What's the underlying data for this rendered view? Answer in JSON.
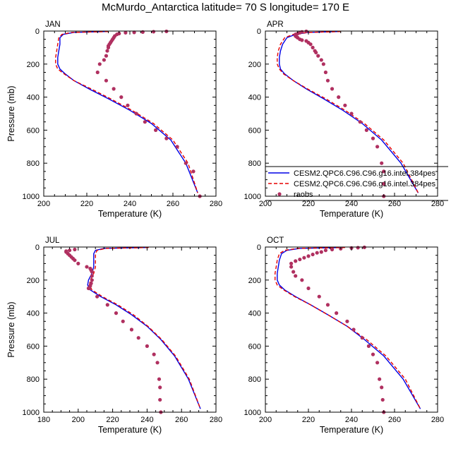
{
  "title": "McMurdo_Antarctica  latitude= 70 S longitude= 170 E",
  "colors": {
    "model_a": "#0000e6",
    "model_b": "#e60000",
    "raobs": "#b03060"
  },
  "legend": {
    "entries": [
      {
        "label": "CESM2.QPC6.C96.C96.g16.intel.384pes",
        "style": "solid",
        "color": "#0000e6"
      },
      {
        "label": "CESM2.QPC6.C96.C96.g16.intel.384pes",
        "style": "dashed",
        "color": "#e60000"
      },
      {
        "label": "raobs",
        "style": "marker",
        "color": "#b03060"
      }
    ]
  },
  "chart_data": [
    {
      "type": "line",
      "panel": "JAN",
      "xlabel": "Temperature (K)",
      "ylabel": "Pressure (mb)",
      "xlim": [
        200,
        280
      ],
      "ylim": [
        1000,
        0
      ],
      "xticks": [
        200,
        220,
        240,
        260,
        280
      ],
      "yticks": [
        0,
        200,
        400,
        600,
        800,
        1000
      ],
      "series": [
        {
          "name": "CESM2.QPC6.C96.C96.g16.intel.384pes",
          "style": "solid",
          "x": [
            229,
            214,
            209,
            207.5,
            207.5,
            207,
            206.5,
            206.5,
            207.5,
            210,
            214,
            221,
            230,
            240,
            250,
            259,
            266,
            271.5
          ],
          "y": [
            3,
            8,
            20,
            40,
            80,
            120,
            160,
            200,
            230,
            260,
            300,
            350,
            410,
            480,
            560,
            660,
            800,
            980
          ]
        },
        {
          "name": "CESM2.QPC6.C96.C96.g16.intel.384pes",
          "style": "dashed",
          "x": [
            230,
            213,
            208.5,
            207,
            206.5,
            206,
            205.5,
            205.5,
            206.5,
            209.5,
            214,
            222,
            231,
            241,
            251,
            260,
            267,
            271.5
          ],
          "y": [
            3,
            8,
            20,
            40,
            80,
            120,
            160,
            200,
            230,
            260,
            300,
            350,
            410,
            480,
            560,
            660,
            800,
            980
          ]
        },
        {
          "name": "raobs",
          "style": "marker",
          "x": [
            257,
            251,
            246,
            242,
            238,
            235,
            234,
            233,
            232.5,
            232,
            231.5,
            231,
            230.5,
            230,
            230,
            229.5,
            229,
            228,
            226,
            225,
            229,
            232.5,
            236,
            239,
            243,
            247,
            252,
            257,
            262,
            266,
            269.5,
            272.5
          ],
          "y": [
            2,
            4,
            6,
            8,
            10,
            15,
            20,
            30,
            40,
            50,
            60,
            70,
            80,
            90,
            100,
            120,
            150,
            175,
            200,
            250,
            300,
            350,
            400,
            450,
            500,
            550,
            600,
            650,
            700,
            800,
            850,
            1000
          ]
        }
      ]
    },
    {
      "type": "line",
      "panel": "APR",
      "xlabel": "Temperature (K)",
      "ylabel": "",
      "xlim": [
        200,
        280
      ],
      "ylim": [
        1000,
        0
      ],
      "xticks": [
        200,
        220,
        240,
        260,
        280
      ],
      "yticks": [
        0,
        200,
        400,
        600,
        800,
        1000
      ],
      "series": [
        {
          "name": "CESM2.QPC6.C96.C96.g16.intel.384pes",
          "style": "solid",
          "x": [
            234,
            220,
            214,
            210,
            208,
            207,
            206.5,
            206.5,
            207,
            209,
            213,
            219,
            227,
            236,
            245,
            254,
            263,
            271
          ],
          "y": [
            3,
            8,
            20,
            40,
            80,
            120,
            160,
            200,
            230,
            260,
            300,
            350,
            410,
            480,
            560,
            660,
            800,
            980
          ]
        },
        {
          "name": "CESM2.QPC6.C96.C96.g16.intel.384pes",
          "style": "dashed",
          "x": [
            235,
            220,
            213,
            209,
            207,
            206,
            205.5,
            205.5,
            206.5,
            208.5,
            213,
            219.5,
            228,
            237,
            246,
            255,
            264,
            271
          ],
          "y": [
            3,
            8,
            20,
            40,
            80,
            120,
            160,
            200,
            230,
            260,
            300,
            350,
            410,
            480,
            560,
            660,
            800,
            980
          ]
        },
        {
          "name": "raobs",
          "style": "marker",
          "x": [
            219,
            217,
            216,
            215,
            214,
            214,
            214.5,
            215,
            216,
            217,
            219,
            220,
            221,
            222,
            223,
            223.5,
            224.5,
            226,
            227,
            228,
            229,
            231,
            234,
            237,
            240,
            244,
            247,
            250,
            252,
            254,
            255,
            255,
            255
          ],
          "y": [
            2,
            5,
            10,
            15,
            20,
            30,
            35,
            40,
            50,
            55,
            60,
            70,
            80,
            100,
            120,
            130,
            150,
            175,
            200,
            250,
            300,
            350,
            400,
            450,
            500,
            550,
            600,
            650,
            700,
            800,
            850,
            925,
            1000
          ]
        }
      ]
    },
    {
      "type": "line",
      "panel": "JUL",
      "xlabel": "Temperature (K)",
      "ylabel": "Pressure (mb)",
      "xlim": [
        180,
        280
      ],
      "ylim": [
        1000,
        0
      ],
      "xticks": [
        180,
        200,
        220,
        240,
        260,
        280
      ],
      "yticks": [
        0,
        200,
        400,
        600,
        800,
        1000
      ],
      "series": [
        {
          "name": "CESM2.QPC6.C96.C96.g16.intel.384pes",
          "style": "solid",
          "x": [
            240,
            215,
            210,
            209,
            209,
            209,
            208,
            206,
            205.5,
            207,
            213,
            222,
            231,
            240,
            248,
            256,
            264,
            271
          ],
          "y": [
            3,
            8,
            20,
            40,
            80,
            120,
            160,
            200,
            230,
            260,
            300,
            350,
            410,
            480,
            560,
            660,
            800,
            980
          ]
        },
        {
          "name": "CESM2.QPC6.C96.C96.g16.intel.384pes",
          "style": "dashed",
          "x": [
            241,
            216,
            211,
            210,
            210,
            210,
            209,
            207,
            206.5,
            208,
            214,
            223,
            232,
            240.5,
            248.5,
            256.5,
            264.5,
            271
          ],
          "y": [
            3,
            8,
            20,
            40,
            80,
            120,
            160,
            200,
            230,
            260,
            300,
            350,
            410,
            480,
            560,
            660,
            800,
            980
          ]
        },
        {
          "name": "raobs",
          "style": "marker",
          "x": [
            198,
            195,
            193,
            193,
            194,
            195,
            196,
            197,
            198,
            200,
            205,
            207,
            207.5,
            208,
            208,
            208,
            207.5,
            207,
            206.5,
            206,
            211,
            217,
            222,
            226,
            231,
            235,
            240,
            244,
            246,
            247,
            247.5,
            247.5,
            248
          ],
          "y": [
            15,
            20,
            25,
            30,
            40,
            50,
            60,
            70,
            80,
            100,
            120,
            130,
            140,
            150,
            175,
            200,
            220,
            235,
            250,
            250,
            300,
            350,
            400,
            450,
            500,
            550,
            600,
            650,
            700,
            800,
            850,
            925,
            1000
          ]
        }
      ]
    },
    {
      "type": "line",
      "panel": "OCT",
      "xlabel": "Temperature (K)",
      "ylabel": "",
      "xlim": [
        200,
        280
      ],
      "ylim": [
        1000,
        0
      ],
      "xticks": [
        200,
        220,
        240,
        260,
        280
      ],
      "yticks": [
        0,
        200,
        400,
        600,
        800,
        1000
      ],
      "series": [
        {
          "name": "CESM2.QPC6.C96.C96.g16.intel.384pes",
          "style": "solid",
          "x": [
            236,
            216,
            210,
            207.5,
            206.5,
            206,
            205.5,
            205.5,
            206.5,
            209,
            214,
            221,
            229,
            238,
            246,
            255,
            264,
            272
          ],
          "y": [
            3,
            8,
            20,
            40,
            80,
            120,
            160,
            200,
            230,
            260,
            300,
            350,
            410,
            480,
            560,
            660,
            800,
            980
          ]
        },
        {
          "name": "CESM2.QPC6.C96.C96.g16.intel.384pes",
          "style": "dashed",
          "x": [
            237,
            215,
            209,
            206.5,
            205.5,
            205,
            204.5,
            204.5,
            205.5,
            208.5,
            213.5,
            221,
            229,
            238,
            247,
            256,
            265,
            272
          ],
          "y": [
            3,
            8,
            20,
            40,
            80,
            120,
            160,
            200,
            230,
            260,
            300,
            350,
            410,
            480,
            560,
            660,
            800,
            980
          ]
        },
        {
          "name": "raobs",
          "style": "marker",
          "x": [
            246,
            243,
            240,
            235,
            231,
            228,
            226,
            224,
            222,
            220,
            218,
            216,
            214,
            212,
            212,
            213,
            214,
            217,
            220,
            225,
            229,
            233,
            238,
            241,
            245,
            248,
            250,
            252,
            253,
            254,
            254.5,
            255
          ],
          "y": [
            2,
            4,
            6,
            10,
            15,
            20,
            30,
            35,
            45,
            55,
            65,
            75,
            85,
            100,
            120,
            150,
            175,
            200,
            250,
            300,
            350,
            400,
            450,
            500,
            550,
            600,
            650,
            700,
            800,
            850,
            925,
            1000
          ]
        }
      ]
    }
  ]
}
